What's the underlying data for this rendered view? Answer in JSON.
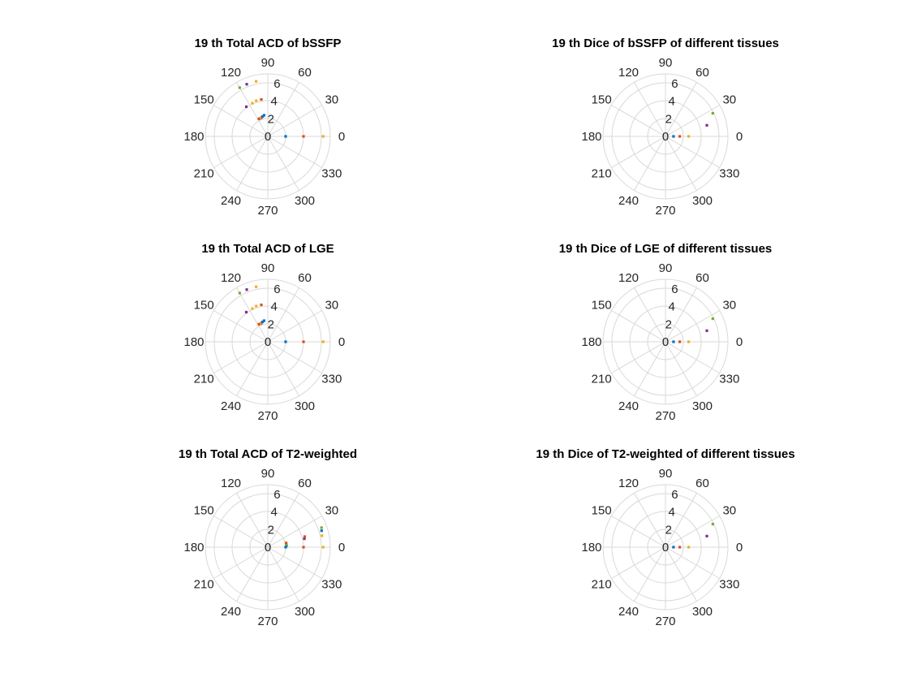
{
  "colors": {
    "grid": "#d9d9d9",
    "series": [
      "#0072BD",
      "#D95319",
      "#EDB120",
      "#7E2F8E",
      "#77AC30"
    ]
  },
  "chart_data": [
    {
      "type": "scatter",
      "title": "19 th Total ACD of bSSFP",
      "rlim": [
        0,
        7
      ],
      "rticks": [
        "0",
        "2",
        "4",
        "6"
      ],
      "theta_ticks": [
        "0",
        "30",
        "60",
        "90",
        "120",
        "150",
        "180",
        "210",
        "240",
        "270",
        "300",
        "330"
      ],
      "grid": true,
      "points": [
        {
          "theta": 0,
          "r": 2,
          "series": 0
        },
        {
          "theta": 0,
          "r": 4,
          "series": 1
        },
        {
          "theta": 0,
          "r": 6.2,
          "series": 2
        },
        {
          "theta": 100,
          "r": 2.4,
          "series": 0
        },
        {
          "theta": 105,
          "r": 2.3,
          "series": 0
        },
        {
          "theta": 110,
          "r": 2.2,
          "series": 3
        },
        {
          "theta": 113,
          "r": 2.2,
          "series": 2
        },
        {
          "theta": 117,
          "r": 2.2,
          "series": 1
        },
        {
          "theta": 100,
          "r": 4.2,
          "series": 1
        },
        {
          "theta": 108,
          "r": 4.2,
          "series": 2
        },
        {
          "theta": 115,
          "r": 4.1,
          "series": 2
        },
        {
          "theta": 126,
          "r": 4.1,
          "series": 3
        },
        {
          "theta": 102,
          "r": 6.3,
          "series": 2
        },
        {
          "theta": 112,
          "r": 6.3,
          "series": 3
        },
        {
          "theta": 120,
          "r": 6.3,
          "series": 4
        }
      ]
    },
    {
      "type": "scatter",
      "title": "19 th Dice of bSSFP of different tissues",
      "rlim": [
        0,
        7
      ],
      "rticks": [
        "0",
        "2",
        "4",
        "6"
      ],
      "theta_ticks": [
        "0",
        "30",
        "60",
        "90",
        "120",
        "150",
        "180",
        "210",
        "240",
        "270",
        "300",
        "330"
      ],
      "grid": true,
      "points": [
        {
          "theta": 0,
          "r": 0.9,
          "series": 0
        },
        {
          "theta": 0,
          "r": 1.6,
          "series": 1
        },
        {
          "theta": 0,
          "r": 2.6,
          "series": 2
        },
        {
          "theta": 15,
          "r": 4.8,
          "series": 3
        },
        {
          "theta": 26,
          "r": 5.9,
          "series": 4
        }
      ]
    },
    {
      "type": "scatter",
      "title": "19 th Total ACD of LGE",
      "rlim": [
        0,
        7
      ],
      "rticks": [
        "0",
        "2",
        "4",
        "6"
      ],
      "theta_ticks": [
        "0",
        "30",
        "60",
        "90",
        "120",
        "150",
        "180",
        "210",
        "240",
        "270",
        "300",
        "330"
      ],
      "grid": true,
      "points": [
        {
          "theta": 0,
          "r": 2,
          "series": 0
        },
        {
          "theta": 0,
          "r": 4,
          "series": 1
        },
        {
          "theta": 0,
          "r": 6.2,
          "series": 2
        },
        {
          "theta": 100,
          "r": 2.4,
          "series": 0
        },
        {
          "theta": 105,
          "r": 2.3,
          "series": 0
        },
        {
          "theta": 110,
          "r": 2.2,
          "series": 3
        },
        {
          "theta": 113,
          "r": 2.2,
          "series": 2
        },
        {
          "theta": 117,
          "r": 2.2,
          "series": 1
        },
        {
          "theta": 100,
          "r": 4.2,
          "series": 1
        },
        {
          "theta": 108,
          "r": 4.2,
          "series": 2
        },
        {
          "theta": 115,
          "r": 4.1,
          "series": 2
        },
        {
          "theta": 126,
          "r": 4.1,
          "series": 3
        },
        {
          "theta": 102,
          "r": 6.3,
          "series": 2
        },
        {
          "theta": 112,
          "r": 6.3,
          "series": 3
        },
        {
          "theta": 120,
          "r": 6.3,
          "series": 4
        }
      ]
    },
    {
      "type": "scatter",
      "title": "19 th Dice of LGE of different tissues",
      "rlim": [
        0,
        7
      ],
      "rticks": [
        "0",
        "2",
        "4",
        "6"
      ],
      "theta_ticks": [
        "0",
        "30",
        "60",
        "90",
        "120",
        "150",
        "180",
        "210",
        "240",
        "270",
        "300",
        "330"
      ],
      "grid": true,
      "points": [
        {
          "theta": 0,
          "r": 0.9,
          "series": 0
        },
        {
          "theta": 0,
          "r": 1.6,
          "series": 1
        },
        {
          "theta": 0,
          "r": 2.6,
          "series": 2
        },
        {
          "theta": 15,
          "r": 4.8,
          "series": 3
        },
        {
          "theta": 26,
          "r": 5.9,
          "series": 4
        }
      ]
    },
    {
      "type": "scatter",
      "title": "19 th Total ACD of T2-weighted",
      "rlim": [
        0,
        7
      ],
      "rticks": [
        "0",
        "2",
        "4",
        "6"
      ],
      "theta_ticks": [
        "0",
        "30",
        "60",
        "90",
        "120",
        "150",
        "180",
        "210",
        "240",
        "270",
        "300",
        "330"
      ],
      "grid": true,
      "points": [
        {
          "theta": 0,
          "r": 2,
          "series": 0
        },
        {
          "theta": 0,
          "r": 4,
          "series": 1
        },
        {
          "theta": 0,
          "r": 6.2,
          "series": 2
        },
        {
          "theta": 5,
          "r": 2.1,
          "series": 0
        },
        {
          "theta": 9,
          "r": 2.1,
          "series": 4
        },
        {
          "theta": 13,
          "r": 2.1,
          "series": 1
        },
        {
          "theta": 13,
          "r": 4.2,
          "series": 3
        },
        {
          "theta": 16,
          "r": 4.3,
          "series": 1
        },
        {
          "theta": 12,
          "r": 6.2,
          "series": 2
        },
        {
          "theta": 17,
          "r": 6.3,
          "series": 0
        },
        {
          "theta": 20,
          "r": 6.4,
          "series": 4
        }
      ]
    },
    {
      "type": "scatter",
      "title": "19 th Dice of T2-weighted of different tissues",
      "rlim": [
        0,
        7
      ],
      "rticks": [
        "0",
        "2",
        "4",
        "6"
      ],
      "theta_ticks": [
        "0",
        "30",
        "60",
        "90",
        "120",
        "150",
        "180",
        "210",
        "240",
        "270",
        "300",
        "330"
      ],
      "grid": true,
      "points": [
        {
          "theta": 0,
          "r": 0.9,
          "series": 0
        },
        {
          "theta": 0,
          "r": 1.6,
          "series": 1
        },
        {
          "theta": 0,
          "r": 2.6,
          "series": 2
        },
        {
          "theta": 15,
          "r": 4.8,
          "series": 3
        },
        {
          "theta": 26,
          "r": 5.9,
          "series": 4
        }
      ]
    }
  ]
}
